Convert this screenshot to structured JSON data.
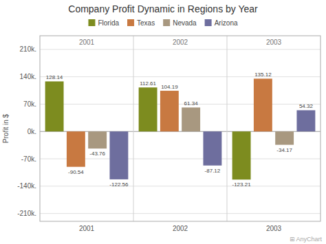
{
  "chart_data": {
    "type": "bar",
    "title": "Company Profit Dynamic in Regions by Year",
    "ylabel": "Profit in $",
    "categories": [
      "2001",
      "2002",
      "2003"
    ],
    "series": [
      {
        "name": "Florida",
        "color": "#7d8c1f",
        "values": [
          128.14,
          112.61,
          -123.21
        ]
      },
      {
        "name": "Texas",
        "color": "#c87941",
        "values": [
          -90.54,
          104.19,
          135.12
        ]
      },
      {
        "name": "Nevada",
        "color": "#a89880",
        "values": [
          -43.76,
          61.34,
          -34.17
        ]
      },
      {
        "name": "Arizona",
        "color": "#6e6e9e",
        "values": [
          -122.56,
          -87.12,
          54.32
        ]
      }
    ],
    "ylim": [
      -230,
      245
    ],
    "yticks": [
      {
        "value": -210,
        "label": "-210k."
      },
      {
        "value": -140,
        "label": "-140k."
      },
      {
        "value": -70,
        "label": "-70k."
      },
      {
        "value": 0,
        "label": "0k."
      },
      {
        "value": 70,
        "label": "70k."
      },
      {
        "value": 140,
        "label": "140k."
      },
      {
        "value": 210,
        "label": "210k."
      }
    ],
    "grid": true,
    "legend": "top",
    "data_labels": true,
    "annotations": [
      "⊞ AnyChart"
    ]
  }
}
